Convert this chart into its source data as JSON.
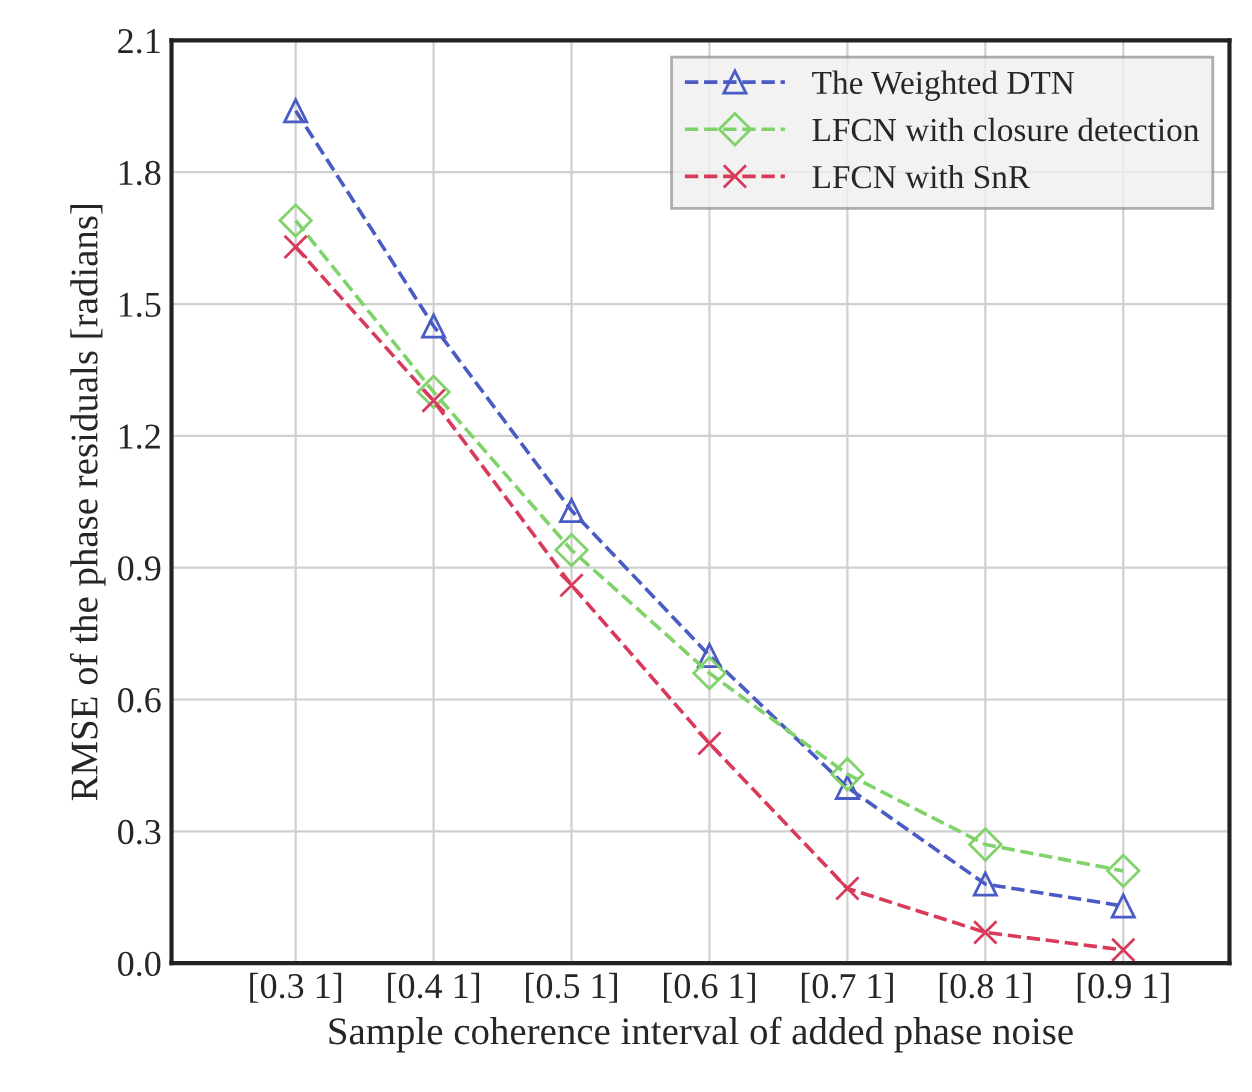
{
  "chart_data": {
    "type": "line",
    "xlabel": "Sample coherence interval of added phase noise",
    "ylabel": "RMSE of the phase residuals [radians]",
    "categories": [
      "[0.3 1]",
      "[0.4 1]",
      "[0.5 1]",
      "[0.6 1]",
      "[0.7 1]",
      "[0.8 1]",
      "[0.9 1]"
    ],
    "series": [
      {
        "name": "The Weighted DTN",
        "color": "#4a5bc4",
        "marker": "triangle",
        "values": [
          1.94,
          1.45,
          1.03,
          0.7,
          0.4,
          0.18,
          0.13
        ]
      },
      {
        "name": "LFCN with closure detection",
        "color": "#7fd36a",
        "marker": "diamond",
        "values": [
          1.69,
          1.3,
          0.94,
          0.66,
          0.43,
          0.27,
          0.21
        ]
      },
      {
        "name": "LFCN with SnR",
        "color": "#d83a5a",
        "marker": "cross",
        "values": [
          1.63,
          1.28,
          0.86,
          0.5,
          0.17,
          0.07,
          0.03
        ]
      }
    ],
    "ylim": [
      0,
      2.1
    ],
    "yticks": [
      {
        "value": 0,
        "label": "0.0"
      },
      0.3,
      0.6,
      0.9,
      1.2,
      1.5,
      1.8,
      2.1
    ],
    "grid": true,
    "legend": "top right",
    "line_style": "dashed"
  }
}
